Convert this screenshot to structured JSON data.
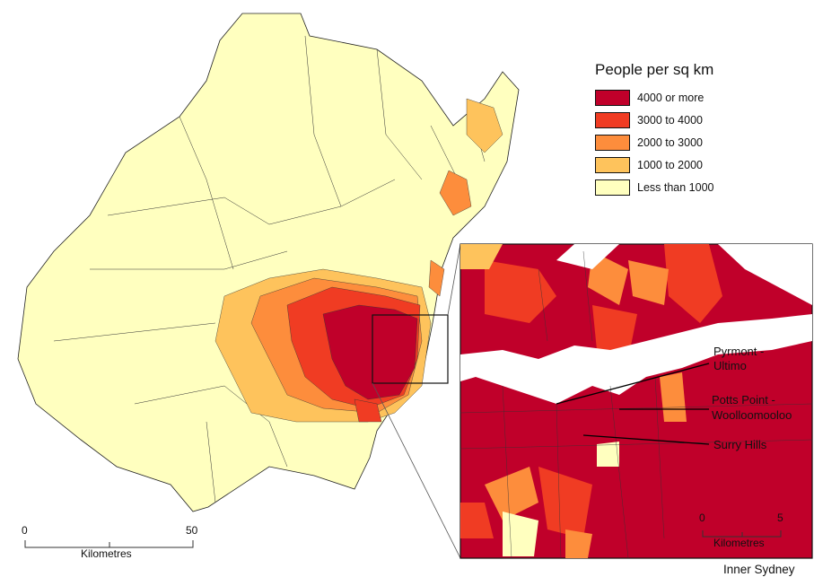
{
  "legend": {
    "title": "People per sq km",
    "items": [
      {
        "label": "4000 or more",
        "color": "#c0002a"
      },
      {
        "label": "3000 to 4000",
        "color": "#f03c23"
      },
      {
        "label": "2000 to 3000",
        "color": "#fd8d3c"
      },
      {
        "label": "1000 to 2000",
        "color": "#fec35c"
      },
      {
        "label": "Less than 1000",
        "color": "#ffffbf"
      }
    ]
  },
  "main_scale": {
    "start": "0",
    "end": "50",
    "unit": "Kilometres"
  },
  "inset": {
    "title": "Inner Sydney",
    "labels": [
      "Pyrmont -",
      "Ultimo",
      "Potts Point -",
      "Woolloomooloo",
      "Surry Hills"
    ],
    "scale": {
      "start": "0",
      "end": "5",
      "unit": "Kilometres"
    }
  }
}
